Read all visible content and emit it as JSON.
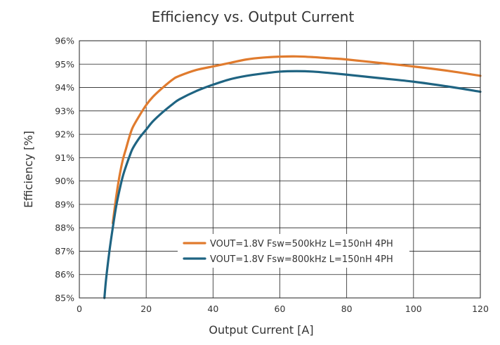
{
  "chart_data": {
    "type": "line",
    "title": "Efficiency vs. Output Current",
    "xlabel": "Output Current [A]",
    "ylabel": "Efficiency [%]",
    "xlim": [
      0,
      120
    ],
    "ylim": [
      85,
      96
    ],
    "x_ticks": [
      0,
      20,
      40,
      60,
      80,
      100,
      120
    ],
    "x_tick_labels": [
      "0",
      "20",
      "40",
      "60",
      "80",
      "100",
      "120"
    ],
    "y_ticks": [
      85,
      86,
      87,
      88,
      89,
      90,
      91,
      92,
      93,
      94,
      95,
      96
    ],
    "y_tick_labels": [
      "85%",
      "86%",
      "87%",
      "88%",
      "89%",
      "90%",
      "91%",
      "92%",
      "93%",
      "94%",
      "95%",
      "96%"
    ],
    "grid": true,
    "legend_position": "lower-center",
    "series": [
      {
        "name": "VOUT=1.8V Fsw=500kHz L=150nH 4PH",
        "color": "#E07B2E",
        "x": [
          10,
          11,
          12,
          13,
          14,
          15,
          16,
          18,
          20,
          22,
          25,
          28,
          30,
          35,
          40,
          45,
          50,
          55,
          60,
          65,
          70,
          75,
          80,
          90,
          100,
          110,
          120
        ],
        "y": [
          88.2,
          89.3,
          90.2,
          90.9,
          91.4,
          91.9,
          92.3,
          92.8,
          93.25,
          93.6,
          94.0,
          94.35,
          94.5,
          94.75,
          94.9,
          95.05,
          95.2,
          95.28,
          95.32,
          95.33,
          95.3,
          95.25,
          95.2,
          95.05,
          94.9,
          94.72,
          94.5
        ]
      },
      {
        "name": "VOUT=1.8V Fsw=800kHz L=150nH 4PH",
        "color": "#1F6482",
        "x": [
          7.5,
          8,
          9,
          10,
          11,
          12,
          13,
          14,
          15,
          16,
          18,
          20,
          22,
          25,
          28,
          30,
          35,
          40,
          45,
          50,
          55,
          60,
          65,
          70,
          75,
          80,
          90,
          100,
          110,
          120
        ],
        "y": [
          85.0,
          85.8,
          87.0,
          88.0,
          88.9,
          89.6,
          90.2,
          90.65,
          91.05,
          91.4,
          91.85,
          92.2,
          92.55,
          92.95,
          93.3,
          93.5,
          93.85,
          94.12,
          94.35,
          94.5,
          94.6,
          94.68,
          94.7,
          94.68,
          94.62,
          94.55,
          94.4,
          94.25,
          94.05,
          93.82
        ]
      }
    ]
  }
}
